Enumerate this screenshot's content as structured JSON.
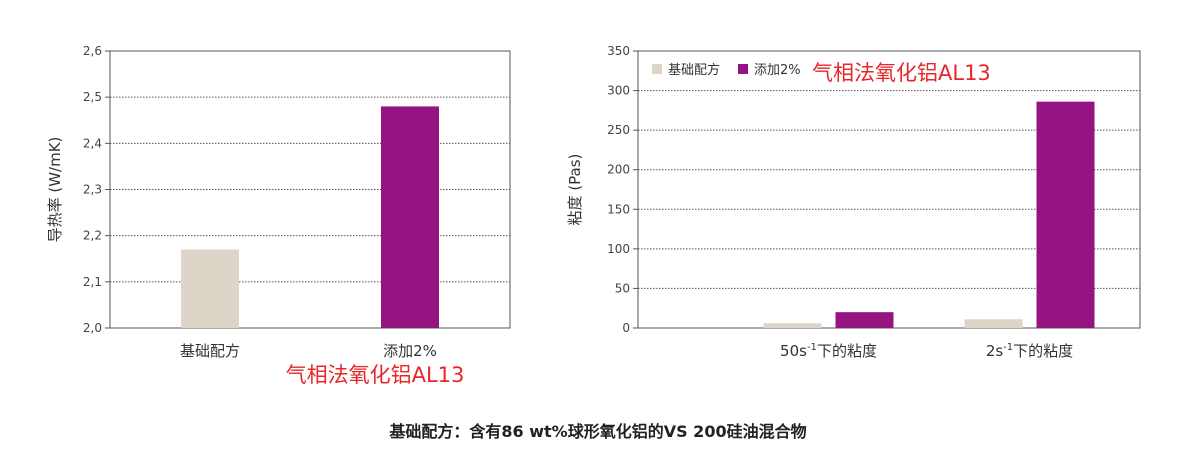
{
  "colors": {
    "base": "#ddd5c7",
    "added": "#951482"
  },
  "annotation_left": "气相法氧化铝AL13",
  "annotation_right": "气相法氧化铝AL13",
  "footnote": "基础配方：含有86 wt%球形氧化铝的VS 200硅油混合物",
  "chart_data": [
    {
      "type": "bar",
      "ylabel": "导热率 (W/mK)",
      "ylim": [
        2.0,
        2.6
      ],
      "yticks": [
        "2,0",
        "2,1",
        "2,2",
        "2,3",
        "2,4",
        "2,5",
        "2,6"
      ],
      "categories": [
        "基础配方",
        "添加2%"
      ],
      "values": [
        2.17,
        2.48
      ],
      "grid": true
    },
    {
      "type": "bar",
      "ylabel": "粘度 (Pas)",
      "ylim": [
        0,
        350
      ],
      "yticks": [
        "0",
        "50",
        "100",
        "150",
        "200",
        "250",
        "300",
        "350"
      ],
      "categories": [
        {
          "main": "50s",
          "sup": "-1",
          "rest": "下的粘度"
        },
        {
          "main": "2s",
          "sup": "-1",
          "rest": "下的粘度"
        }
      ],
      "series": [
        {
          "name": "基础配方",
          "values": [
            6,
            11
          ]
        },
        {
          "name": "添加2%",
          "values": [
            20,
            286
          ]
        }
      ],
      "legend": "top-left",
      "grid": true
    }
  ]
}
